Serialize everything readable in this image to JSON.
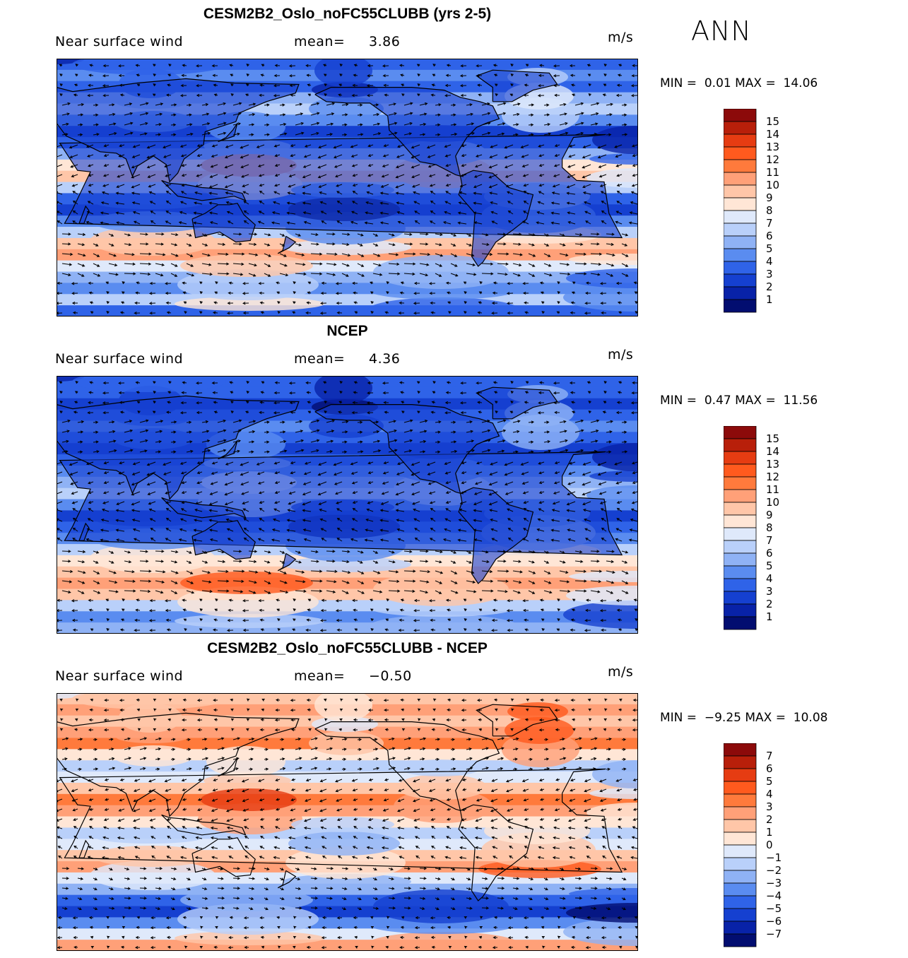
{
  "season": "ANN",
  "units": "m/s",
  "panels": [
    {
      "id": "model",
      "title": "CESM2B2_Oslo_noFC55CLUBB (yrs 2-5)",
      "variable": "Near surface wind",
      "mean_label": "mean=",
      "mean_value": "3.86",
      "min_label": "MIN =",
      "min_value": "0.01",
      "max_label": "MAX =",
      "max_value": "14.06",
      "colorbar_levels": [
        "15",
        "14",
        "13",
        "12",
        "11",
        "10",
        "9",
        "8",
        "7",
        "6",
        "5",
        "4",
        "3",
        "2",
        "1"
      ],
      "colorbar_colors": [
        "#8c0a0a",
        "#b81f0a",
        "#e63c12",
        "#ff5a1e",
        "#ff7a3c",
        "#ffa078",
        "#ffc6a8",
        "#ffe6d6",
        "#dfe9fb",
        "#b9d0fa",
        "#8fb2f5",
        "#5a8cf0",
        "#2f63e8",
        "#1540d0",
        "#0822a8",
        "#020d70"
      ],
      "field": "model"
    },
    {
      "id": "obs",
      "title": "NCEP",
      "variable": "Near surface wind",
      "mean_label": "mean=",
      "mean_value": "4.36",
      "min_label": "MIN =",
      "min_value": "0.47",
      "max_label": "MAX =",
      "max_value": "11.56",
      "colorbar_levels": [
        "15",
        "14",
        "13",
        "12",
        "11",
        "10",
        "9",
        "8",
        "7",
        "6",
        "5",
        "4",
        "3",
        "2",
        "1"
      ],
      "colorbar_colors": [
        "#8c0a0a",
        "#b81f0a",
        "#e63c12",
        "#ff5a1e",
        "#ff7a3c",
        "#ffa078",
        "#ffc6a8",
        "#ffe6d6",
        "#dfe9fb",
        "#b9d0fa",
        "#8fb2f5",
        "#5a8cf0",
        "#2f63e8",
        "#1540d0",
        "#0822a8",
        "#020d70"
      ],
      "field": "obs"
    },
    {
      "id": "diff",
      "title": "CESM2B2_Oslo_noFC55CLUBB - NCEP",
      "variable": "Near surface wind",
      "mean_label": "mean=",
      "mean_value": "−0.50",
      "min_label": "MIN =",
      "min_value": "−9.25",
      "max_label": "MAX =",
      "max_value": "10.08",
      "colorbar_levels": [
        "7",
        "6",
        "5",
        "4",
        "3",
        "2",
        "1",
        "0",
        "−1",
        "−2",
        "−3",
        "−4",
        "−5",
        "−6",
        "−7"
      ],
      "colorbar_colors": [
        "#8c0a0a",
        "#b81f0a",
        "#e63c12",
        "#ff5a1e",
        "#ff7a3c",
        "#ffa078",
        "#ffc6a8",
        "#ffe6d6",
        "#dfe9fb",
        "#b9d0fa",
        "#8fb2f5",
        "#5a8cf0",
        "#2f63e8",
        "#1540d0",
        "#0822a8",
        "#020d70"
      ],
      "field": "diff"
    }
  ]
}
